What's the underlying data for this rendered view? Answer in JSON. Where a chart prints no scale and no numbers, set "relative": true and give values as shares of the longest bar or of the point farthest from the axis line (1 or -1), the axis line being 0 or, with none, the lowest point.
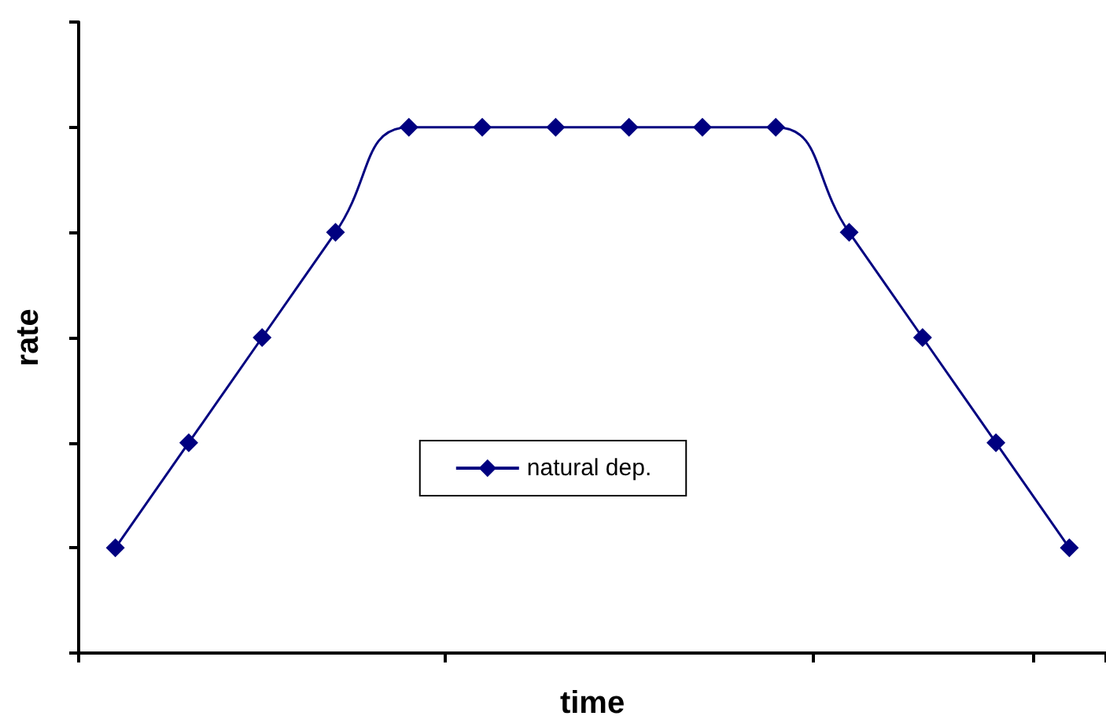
{
  "chart_data": {
    "type": "line",
    "xlabel": "time",
    "ylabel": "rate",
    "relative": true,
    "categories": [
      null,
      null,
      null,
      null,
      null,
      null,
      null,
      null,
      null,
      null,
      null,
      null,
      null,
      null
    ],
    "series": [
      {
        "name": "natural dep.",
        "color": "#000080",
        "values": [
          0.2,
          0.4,
          0.6,
          0.8,
          1,
          1,
          1,
          1,
          1,
          1,
          0.8,
          0.6,
          0.4,
          0.2
        ]
      }
    ],
    "marker": "diamond",
    "legend": "center",
    "grid": false
  }
}
